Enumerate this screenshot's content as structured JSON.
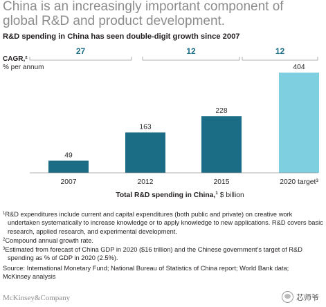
{
  "header": {
    "title": "China is an increasingly important component of global R&D and product development.",
    "subtitle": "R&D spending in China has seen double-digit growth since 2007"
  },
  "chart_data": {
    "type": "bar",
    "title": "China is an increasingly important component of global R&D and product development.",
    "subtitle": "R&D spending in China has seen double-digit growth since 2007",
    "categories": [
      "2007",
      "2012",
      "2015",
      "2020 target³"
    ],
    "values": [
      49,
      163,
      228,
      404
    ],
    "bar_colors": [
      "#1b6d85",
      "#1b6d85",
      "#1b6d85",
      "#7ecfe0"
    ],
    "xlabel": "Total R&D spending in China,¹ $ billion",
    "xlabel_bold": "Total R&D spending in China,",
    "xlabel_sup": "1",
    "xlabel_unit": " $ billion",
    "ylim": [
      0,
      404
    ],
    "cagr_label": "CAGR,²",
    "cagr_unit": "% per annum",
    "cagr": [
      {
        "from": 0,
        "to": 1,
        "value": "27"
      },
      {
        "from": 1,
        "to": 2,
        "value": "12"
      },
      {
        "from": 2,
        "to": 3,
        "value": "12"
      }
    ],
    "cagr_color": "#1b6d85",
    "grid": false,
    "legend": "none"
  },
  "footnotes": [
    {
      "mark": "1",
      "text": "R&D expenditures include current and capital expenditures (both public and private) on creative work undertaken systematically to increase knowledge or to apply knowledge to new applications. R&D covers basic research, applied research, and experimental development."
    },
    {
      "mark": "2",
      "text": "Compound annual growth rate."
    },
    {
      "mark": "3",
      "text": "Estimated from forecast of China GDP in 2020 ($16 trillion) and the Chinese government’s target of R&D spending as % of GDP in 2020 (2.5%)."
    }
  ],
  "source": "Source: International Monetary Fund; National Bureau of Statistics of China report; World Bank data; McKinsey analysis",
  "brand": "McKinsey&Company",
  "watermark": "芯师爷"
}
